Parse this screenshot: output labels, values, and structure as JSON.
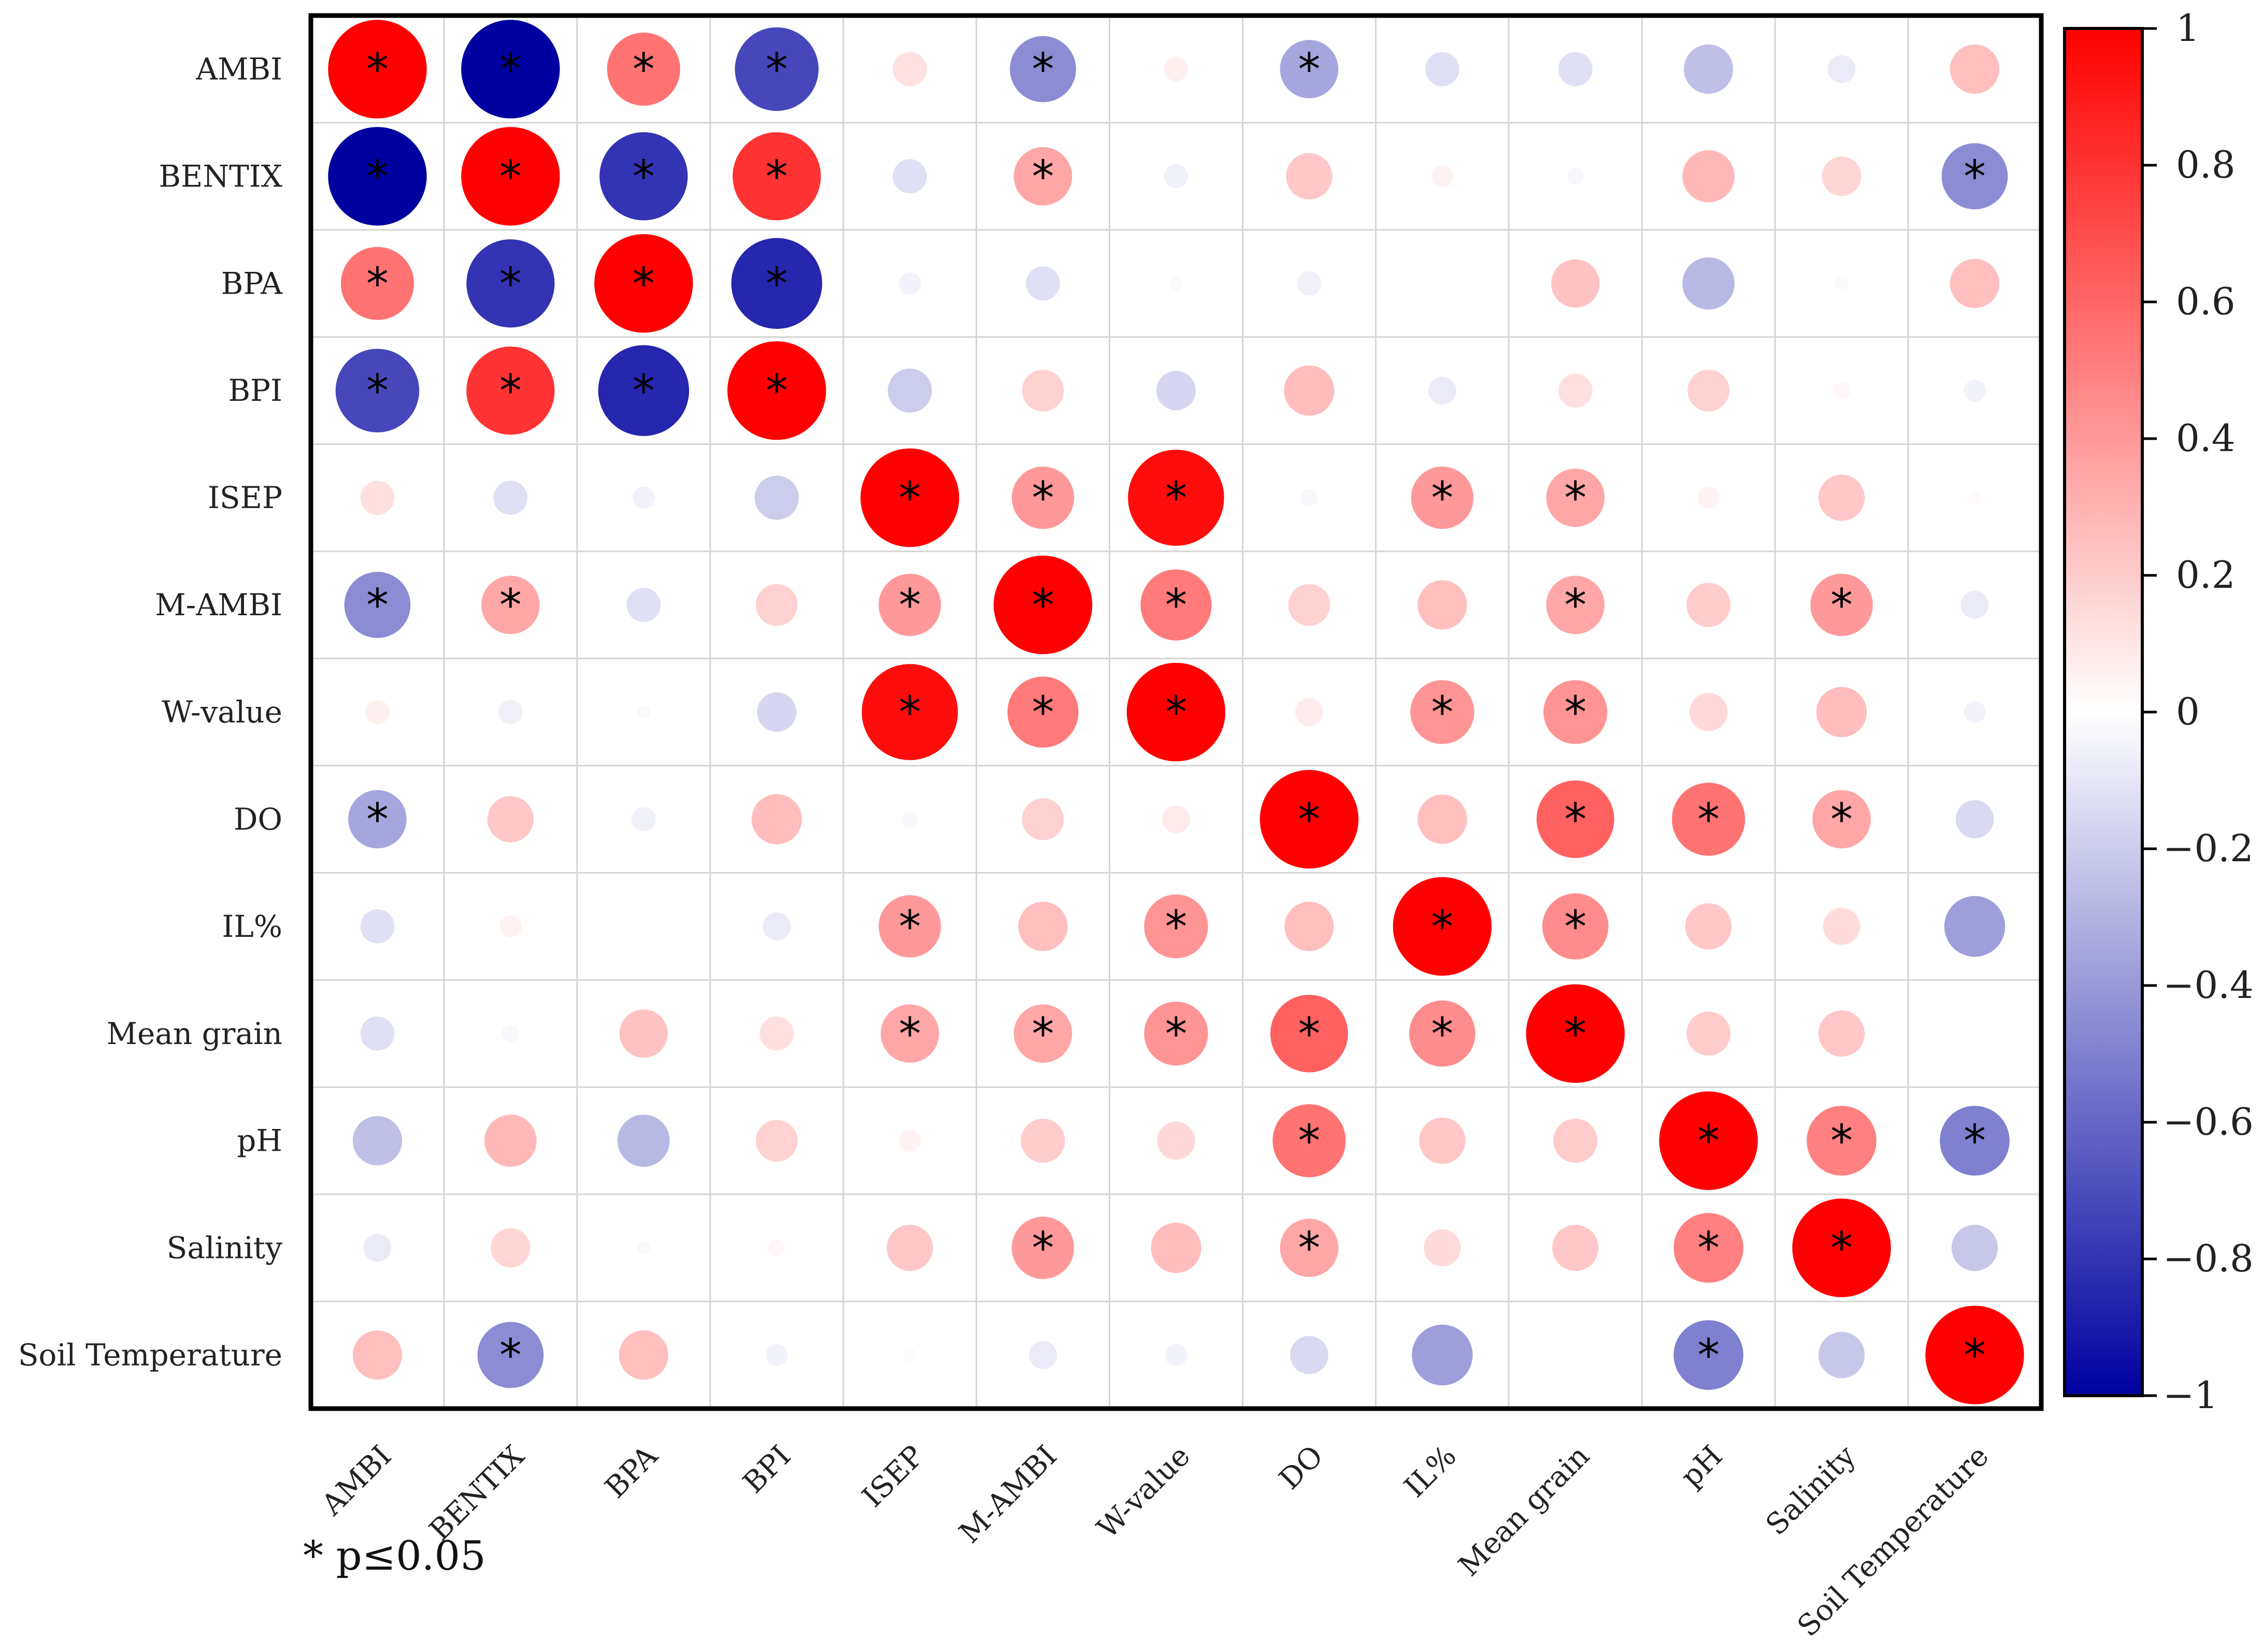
{
  "chart_data": {
    "type": "heatmap",
    "subtype": "correlation-circle-matrix",
    "variables": [
      "AMBI",
      "BENTIX",
      "BPA",
      "BPI",
      "ISEP",
      "M-AMBI",
      "W-value",
      "DO",
      "IL%",
      "Mean grain",
      "pH",
      "Salinity",
      "Soil Temperature"
    ],
    "values": [
      [
        1.0,
        -1.0,
        0.55,
        -0.72,
        0.12,
        -0.45,
        0.06,
        -0.35,
        -0.12,
        -0.12,
        -0.25,
        -0.08,
        0.25
      ],
      [
        -1.0,
        1.0,
        -0.8,
        0.8,
        -0.12,
        0.35,
        -0.06,
        0.22,
        0.05,
        -0.03,
        0.28,
        0.16,
        -0.45
      ],
      [
        0.55,
        -0.8,
        1.0,
        -0.85,
        -0.05,
        -0.12,
        -0.02,
        -0.06,
        0.0,
        0.24,
        -0.28,
        -0.02,
        0.25
      ],
      [
        -0.72,
        0.8,
        -0.85,
        1.0,
        -0.2,
        0.18,
        -0.16,
        0.26,
        -0.08,
        0.12,
        0.18,
        0.03,
        -0.05
      ],
      [
        0.12,
        -0.12,
        -0.05,
        -0.2,
        1.0,
        0.4,
        0.95,
        -0.03,
        0.4,
        0.35,
        0.05,
        0.22,
        0.02
      ],
      [
        -0.45,
        0.35,
        -0.12,
        0.18,
        0.4,
        1.0,
        0.52,
        0.18,
        0.25,
        0.35,
        0.2,
        0.4,
        -0.08
      ],
      [
        0.06,
        -0.06,
        -0.02,
        -0.16,
        0.95,
        0.52,
        1.0,
        0.08,
        0.42,
        0.42,
        0.15,
        0.26,
        -0.05
      ],
      [
        -0.35,
        0.22,
        -0.06,
        0.26,
        -0.03,
        0.18,
        0.08,
        1.0,
        0.25,
        0.62,
        0.55,
        0.35,
        -0.15
      ],
      [
        -0.12,
        0.05,
        0.0,
        -0.08,
        0.4,
        0.25,
        0.42,
        0.25,
        1.0,
        0.45,
        0.22,
        0.14,
        -0.38
      ],
      [
        -0.12,
        -0.03,
        0.24,
        0.12,
        0.35,
        0.35,
        0.42,
        0.62,
        0.45,
        1.0,
        0.2,
        0.22,
        0.0
      ],
      [
        -0.25,
        0.28,
        -0.28,
        0.18,
        0.05,
        0.2,
        0.15,
        0.55,
        0.22,
        0.2,
        1.0,
        0.5,
        -0.5
      ],
      [
        -0.08,
        0.16,
        -0.02,
        0.03,
        0.22,
        0.4,
        0.26,
        0.35,
        0.14,
        0.22,
        0.5,
        1.0,
        -0.22
      ],
      [
        0.25,
        -0.45,
        0.25,
        -0.05,
        0.02,
        -0.08,
        -0.05,
        -0.15,
        -0.38,
        0.0,
        -0.5,
        -0.22,
        1.0
      ]
    ],
    "significant": [
      [
        1,
        1,
        1,
        1,
        0,
        1,
        0,
        1,
        0,
        0,
        0,
        0,
        0
      ],
      [
        1,
        1,
        1,
        1,
        0,
        1,
        0,
        0,
        0,
        0,
        0,
        0,
        1
      ],
      [
        1,
        1,
        1,
        1,
        0,
        0,
        0,
        0,
        0,
        0,
        0,
        0,
        0
      ],
      [
        1,
        1,
        1,
        1,
        0,
        0,
        0,
        0,
        0,
        0,
        0,
        0,
        0
      ],
      [
        0,
        0,
        0,
        0,
        1,
        1,
        1,
        0,
        1,
        1,
        0,
        0,
        0
      ],
      [
        1,
        1,
        0,
        0,
        1,
        1,
        1,
        0,
        0,
        1,
        0,
        1,
        0
      ],
      [
        0,
        0,
        0,
        0,
        1,
        1,
        1,
        0,
        1,
        1,
        0,
        0,
        0
      ],
      [
        1,
        0,
        0,
        0,
        0,
        0,
        0,
        1,
        0,
        1,
        1,
        1,
        0
      ],
      [
        0,
        0,
        0,
        0,
        1,
        0,
        1,
        0,
        1,
        1,
        0,
        0,
        0
      ],
      [
        0,
        0,
        0,
        0,
        1,
        1,
        1,
        1,
        1,
        1,
        0,
        0,
        0
      ],
      [
        0,
        0,
        0,
        0,
        0,
        0,
        0,
        1,
        0,
        0,
        1,
        1,
        1
      ],
      [
        0,
        0,
        0,
        0,
        0,
        1,
        0,
        1,
        0,
        0,
        1,
        1,
        0
      ],
      [
        0,
        1,
        0,
        0,
        0,
        0,
        0,
        0,
        0,
        0,
        1,
        0,
        1
      ]
    ],
    "significance_symbol": "*",
    "colorbar": {
      "range": [
        -1,
        1
      ],
      "ticks": [
        1,
        0.8,
        0.6,
        0.4,
        0.2,
        0,
        -0.2,
        -0.4,
        -0.6,
        -0.8,
        -1
      ],
      "tick_labels": [
        "1",
        "0.8",
        "0.6",
        "0.4",
        "0.2",
        "0",
        "−0.2",
        "−0.4",
        "−0.6",
        "−0.8",
        "−1"
      ],
      "low_color": "#0000a0",
      "mid_color": "#ffffff",
      "high_color": "#ff0000"
    },
    "grid": true,
    "legend_note": "* p≤0.05"
  },
  "colors": {
    "frame": "#000000",
    "grid": "#d4d4d4",
    "star": "#000000"
  }
}
